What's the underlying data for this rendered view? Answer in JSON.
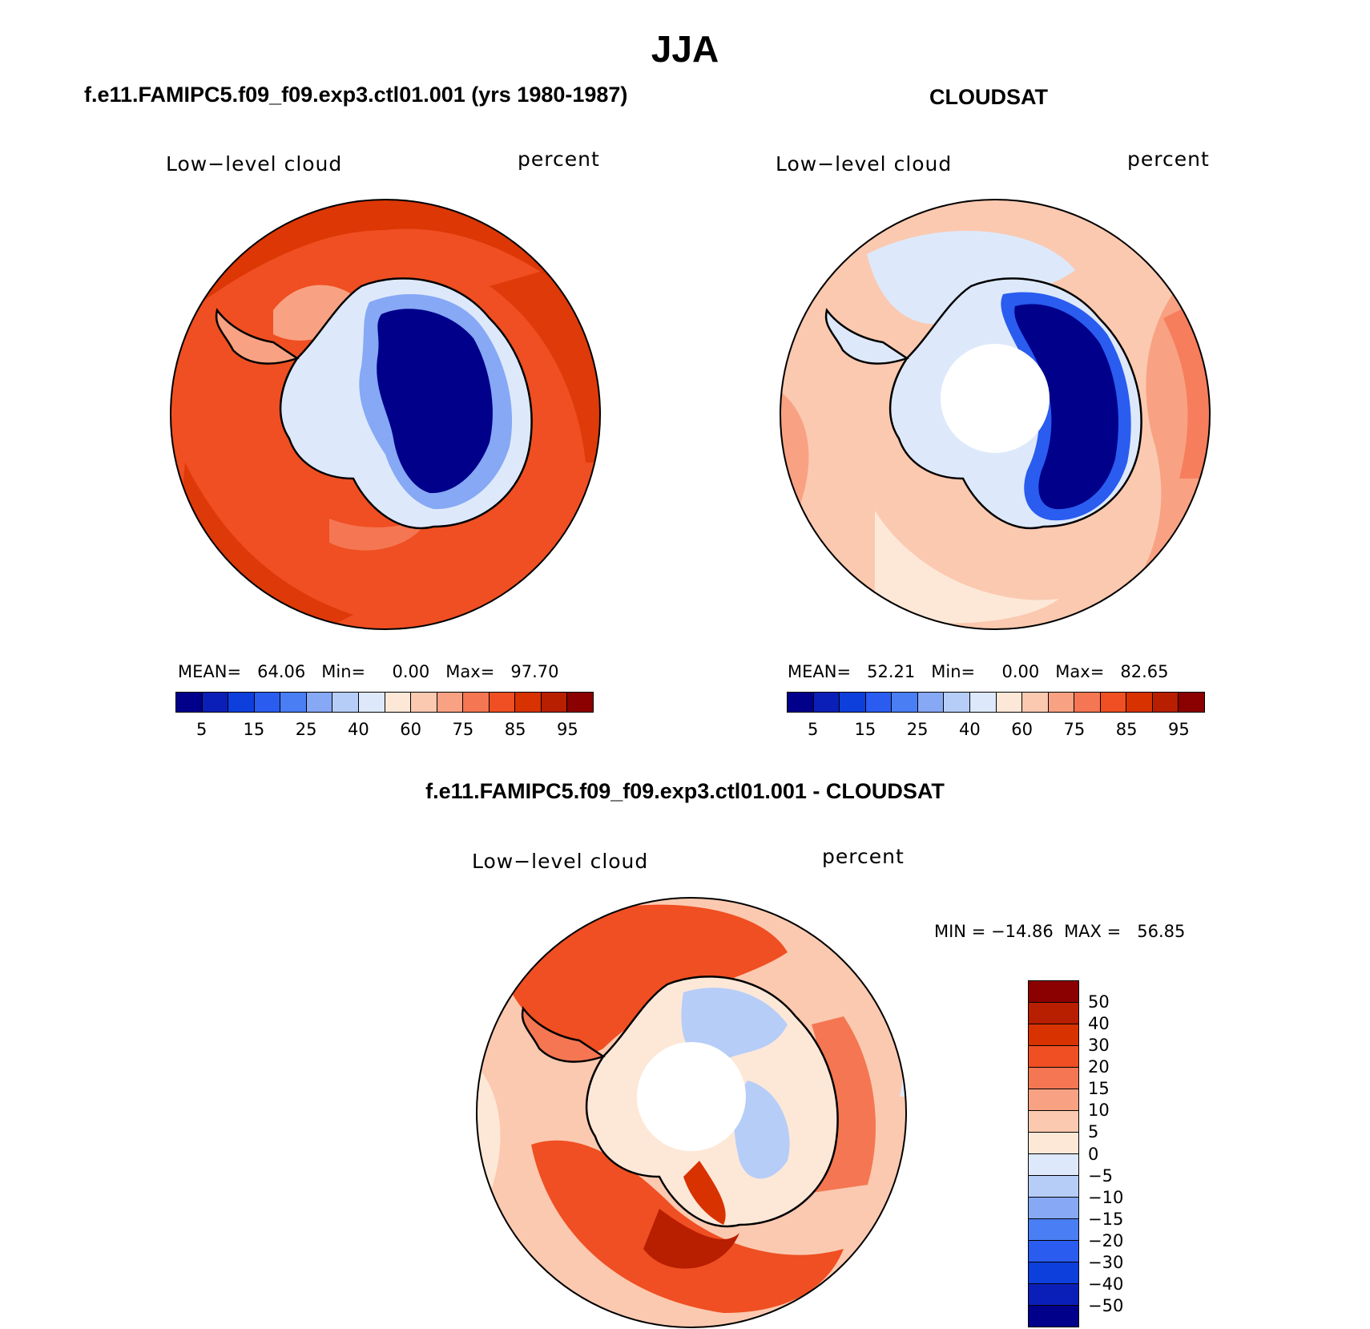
{
  "figure": {
    "season": "JJA",
    "panel_model_title": "f.e11.FAMIPC5.f09_f09.exp3.ctl01.001 (yrs 1980-1987)",
    "panel_obs_title": "CLOUDSAT",
    "panel_diff_title": "f.e11.FAMIPC5.f09_f09.exp3.ctl01.001 - CLOUDSAT",
    "variable_label": "Low−level cloud",
    "units_label": "percent"
  },
  "model_panel": {
    "mean_label": "MEAN=",
    "mean_value": "64.06",
    "min_label": "Min=",
    "min_value": "0.00",
    "max_label": "Max=",
    "max_value": "97.70"
  },
  "obs_panel": {
    "mean_label": "MEAN=",
    "mean_value": "52.21",
    "min_label": "Min=",
    "min_value": "0.00",
    "max_label": "Max=",
    "max_value": "82.65"
  },
  "diff_panel": {
    "min_label": "MIN =",
    "min_value": "−14.86",
    "max_label": "MAX =",
    "max_value": "56.85"
  },
  "colorbar_abs": {
    "colors": [
      "#00008b",
      "#0a1fb8",
      "#0d3fdc",
      "#2a5cf0",
      "#4a7ef5",
      "#86a8f5",
      "#b6cdf8",
      "#dde9fb",
      "#fde8d8",
      "#fbc9b0",
      "#f8a283",
      "#f57652",
      "#ef4f22",
      "#d83200",
      "#b81e00",
      "#8b0000"
    ],
    "tick_labels": [
      "5",
      "15",
      "25",
      "40",
      "60",
      "75",
      "85",
      "95"
    ]
  },
  "colorbar_diff": {
    "colors": [
      "#8b0000",
      "#b81e00",
      "#d83200",
      "#ef4f22",
      "#f57652",
      "#f8a283",
      "#fbc9b0",
      "#fde8d8",
      "#dde9fb",
      "#b6cdf8",
      "#86a8f5",
      "#4a7ef5",
      "#2a5cf0",
      "#0d3fdc",
      "#0a1fb8",
      "#00008b"
    ],
    "tick_labels": [
      "50",
      "40",
      "30",
      "20",
      "15",
      "10",
      "5",
      "0",
      "−5",
      "−10",
      "−15",
      "−20",
      "−30",
      "−40",
      "−50"
    ]
  }
}
